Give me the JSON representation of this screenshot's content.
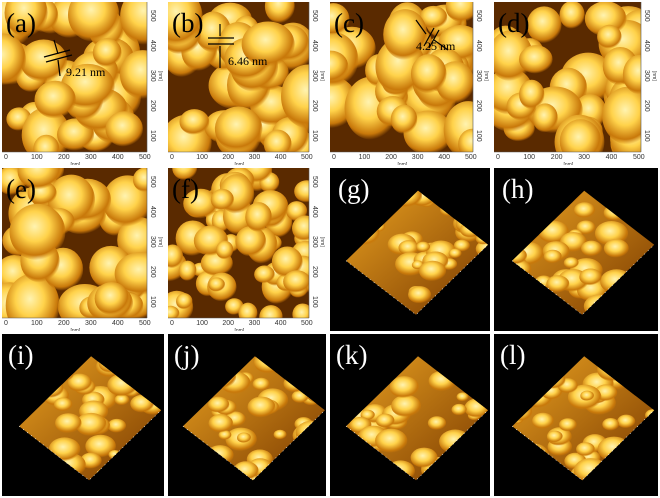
{
  "panels": [
    {
      "label": "(a)",
      "kind": "2d",
      "measurement": "9.21 nm"
    },
    {
      "label": "(b)",
      "kind": "2d",
      "measurement": "6.46 nm"
    },
    {
      "label": "(c)",
      "kind": "2d",
      "measurement": "4.25 nm"
    },
    {
      "label": "(d)",
      "kind": "2d"
    },
    {
      "label": "(e)",
      "kind": "2d"
    },
    {
      "label": "(f)",
      "kind": "2d"
    },
    {
      "label": "(g)",
      "kind": "3d"
    },
    {
      "label": "(h)",
      "kind": "3d"
    },
    {
      "label": "(i)",
      "kind": "3d"
    },
    {
      "label": "(j)",
      "kind": "3d"
    },
    {
      "label": "(k)",
      "kind": "3d"
    },
    {
      "label": "(l)",
      "kind": "3d"
    }
  ],
  "axis": {
    "x_ticks": [
      "0",
      "100",
      "200",
      "300",
      "400",
      "500"
    ],
    "y_ticks": [
      "500",
      "400",
      "300",
      "200",
      "100"
    ],
    "unit": "[nm]"
  },
  "colors": {
    "afm_dark": "#5a2a00",
    "afm_mid": "#c8780a",
    "afm_light": "#ffd24a",
    "afm_highlight": "#fff3b0",
    "background_3d": "#000000"
  }
}
